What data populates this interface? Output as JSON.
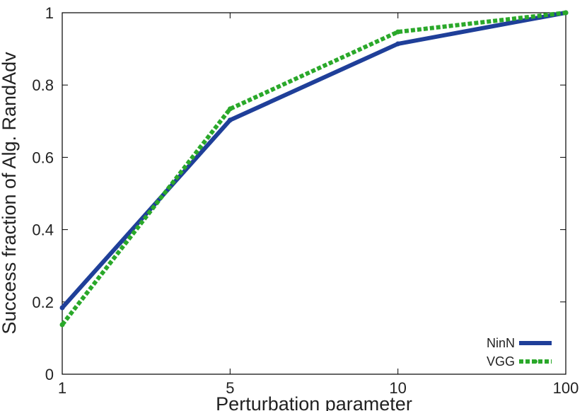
{
  "chart_data": {
    "type": "line",
    "x_label": "Perturbation parameter",
    "y_label": "Success fraction of Alg. RandAdv",
    "categories": [
      "1",
      "5",
      "10",
      "100"
    ],
    "series": [
      {
        "name": "NinN",
        "color": "#1f3f99",
        "dashed": false,
        "values": [
          0.184,
          0.703,
          0.914,
          1.0
        ]
      },
      {
        "name": "VGG",
        "color": "#2aa82a",
        "dashed": true,
        "values": [
          0.137,
          0.734,
          0.947,
          1.0
        ]
      }
    ],
    "ylim": [
      0,
      1
    ],
    "yticks": [
      0,
      0.2,
      0.4,
      0.6,
      0.8,
      1
    ],
    "grid": false,
    "legend": "lower right"
  }
}
